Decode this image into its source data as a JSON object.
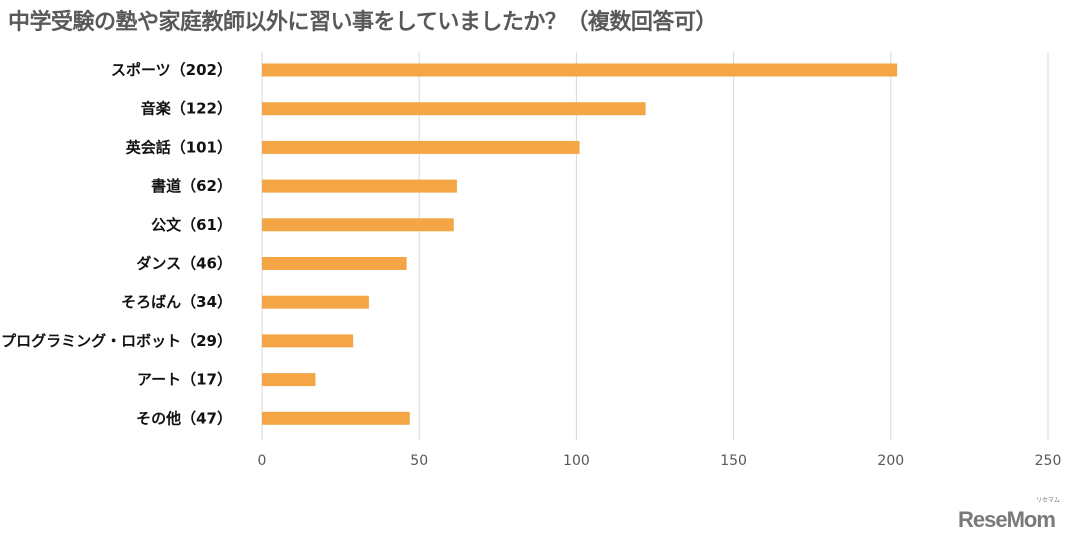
{
  "title": "中学受験の塾や家庭教師以外に習い事をしていましたか？（複数回答可）",
  "logo": {
    "text": "ReseMom",
    "sub": "リセマム"
  },
  "chart_data": {
    "type": "bar",
    "orientation": "horizontal",
    "title": "中学受験の塾や家庭教師以外に習い事をしていましたか？（複数回答可）",
    "categories": [
      "スポーツ（202）",
      "音楽（122）",
      "英会話（101）",
      "書道（62）",
      "公文（61）",
      "ダンス（46）",
      "そろばん（34）",
      "プログラミング・ロボット（29）",
      "アート（17）",
      "その他（47）"
    ],
    "values": [
      202,
      122,
      101,
      62,
      61,
      46,
      34,
      29,
      17,
      47
    ],
    "xlim": [
      0,
      250
    ],
    "xticks": [
      0,
      50,
      100,
      150,
      200,
      250
    ],
    "grid": true,
    "bar_color": "#F4A646",
    "grid_color": "#D9D9D9",
    "title_color": "#595959"
  }
}
